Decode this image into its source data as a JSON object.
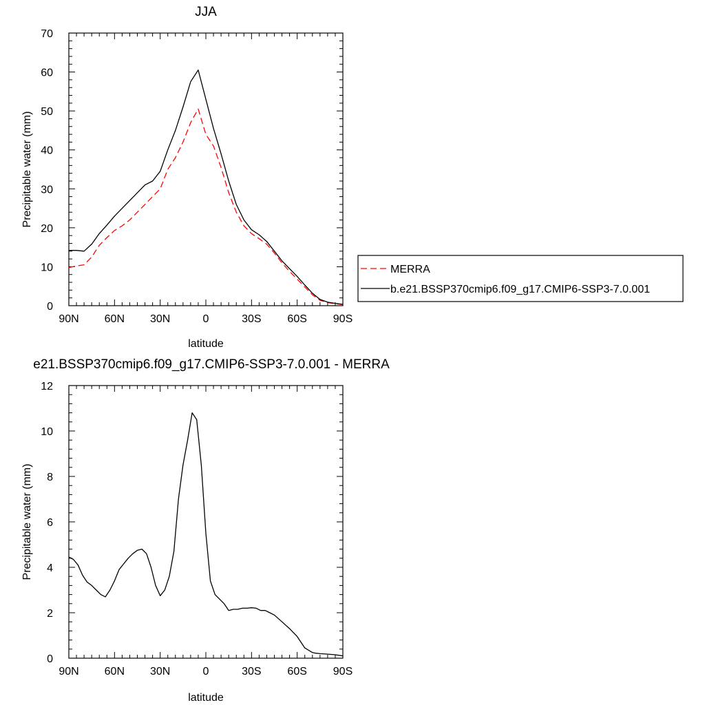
{
  "chart_data": [
    {
      "type": "line",
      "title": "JJA",
      "xlabel": "latitude",
      "ylabel": "Precipitable water (mm)",
      "xlim": [
        90,
        -90
      ],
      "ylim": [
        0,
        70
      ],
      "x_ticks": [
        90,
        60,
        30,
        0,
        -30,
        -60,
        -90
      ],
      "x_tick_labels": [
        "90N",
        "60N",
        "30N",
        "0",
        "30S",
        "60S",
        "90S"
      ],
      "y_ticks": [
        0,
        10,
        20,
        30,
        40,
        50,
        60,
        70
      ],
      "y_tick_labels": [
        "0",
        "10",
        "20",
        "30",
        "40",
        "50",
        "60",
        "70"
      ],
      "legend_position": "right",
      "series": [
        {
          "name": "MERRA",
          "color": "#ff0000",
          "dash": "dashed",
          "x": [
            90,
            85,
            80,
            75,
            70,
            65,
            60,
            55,
            50,
            45,
            40,
            35,
            30,
            25,
            20,
            15,
            10,
            5,
            0,
            -5,
            -10,
            -15,
            -20,
            -25,
            -30,
            -35,
            -40,
            -45,
            -50,
            -55,
            -60,
            -65,
            -70,
            -75,
            -80,
            -85,
            -90
          ],
          "y": [
            9.8,
            10.2,
            10.5,
            12.5,
            15.5,
            17.5,
            19.3,
            20.5,
            22,
            24,
            26,
            28,
            30,
            35,
            38,
            42,
            47,
            50.5,
            44,
            41,
            35.5,
            29,
            24,
            20.5,
            18.5,
            17.2,
            15.8,
            13.5,
            11,
            8.8,
            6.8,
            4.8,
            2.8,
            1.4,
            0.8,
            0.5,
            0.3
          ]
        },
        {
          "name": "b.e21.BSSP370cmip6.f09_g17.CMIP6-SSP3-7.0.001",
          "color": "#000000",
          "dash": "solid",
          "x": [
            90,
            85,
            80,
            75,
            70,
            65,
            60,
            55,
            50,
            45,
            40,
            35,
            30,
            25,
            20,
            15,
            10,
            5,
            0,
            -5,
            -10,
            -15,
            -20,
            -25,
            -30,
            -35,
            -40,
            -45,
            -50,
            -55,
            -60,
            -65,
            -70,
            -75,
            -80,
            -85,
            -90
          ],
          "y": [
            14.2,
            14.2,
            14,
            15.8,
            18.5,
            20.7,
            23,
            25,
            27,
            29,
            31,
            32,
            34.5,
            40,
            45,
            51,
            57.5,
            60.5,
            53,
            45.5,
            39,
            32,
            26,
            22,
            19.5,
            18.2,
            16.5,
            14,
            11.5,
            9.5,
            7.5,
            5.3,
            3.2,
            1.6,
            0.9,
            0.6,
            0.35
          ]
        }
      ]
    },
    {
      "type": "line",
      "title": "e21.BSSP370cmip6.f09_g17.CMIP6-SSP3-7.0.001 - MERRA",
      "xlabel": "latitude",
      "ylabel": "Precipitable water (mm)",
      "xlim": [
        90,
        -90
      ],
      "ylim": [
        0,
        12
      ],
      "x_ticks": [
        90,
        60,
        30,
        0,
        -30,
        -60,
        -90
      ],
      "x_tick_labels": [
        "90N",
        "60N",
        "30N",
        "0",
        "30S",
        "60S",
        "90S"
      ],
      "y_ticks": [
        0,
        2,
        4,
        6,
        8,
        10,
        12
      ],
      "y_tick_labels": [
        "0",
        "2",
        "4",
        "6",
        "8",
        "10",
        "12"
      ],
      "series": [
        {
          "color": "#000000",
          "dash": "solid",
          "x": [
            90,
            87,
            84,
            81,
            78,
            75,
            72,
            69,
            66,
            63,
            60,
            57,
            54,
            51,
            48,
            45,
            42,
            39,
            36,
            33,
            30,
            27,
            24,
            21,
            18,
            15,
            12,
            9,
            6,
            3,
            0,
            -3,
            -6,
            -9,
            -12,
            -15,
            -18,
            -21,
            -24,
            -27,
            -30,
            -33,
            -36,
            -39,
            -42,
            -45,
            -50,
            -55,
            -60,
            -65,
            -70,
            -72,
            -75,
            -80,
            -85,
            -90
          ],
          "y": [
            4.45,
            4.35,
            4.1,
            3.65,
            3.35,
            3.2,
            3.0,
            2.8,
            2.7,
            3.0,
            3.4,
            3.9,
            4.15,
            4.4,
            4.6,
            4.75,
            4.8,
            4.6,
            4.0,
            3.2,
            2.75,
            3.0,
            3.6,
            4.7,
            7.0,
            8.5,
            9.6,
            10.8,
            10.5,
            8.5,
            5.5,
            3.4,
            2.8,
            2.6,
            2.4,
            2.1,
            2.15,
            2.15,
            2.2,
            2.2,
            2.22,
            2.2,
            2.1,
            2.1,
            2.0,
            1.9,
            1.6,
            1.3,
            0.95,
            0.45,
            0.25,
            0.22,
            0.2,
            0.18,
            0.15,
            0.1
          ]
        }
      ]
    }
  ]
}
